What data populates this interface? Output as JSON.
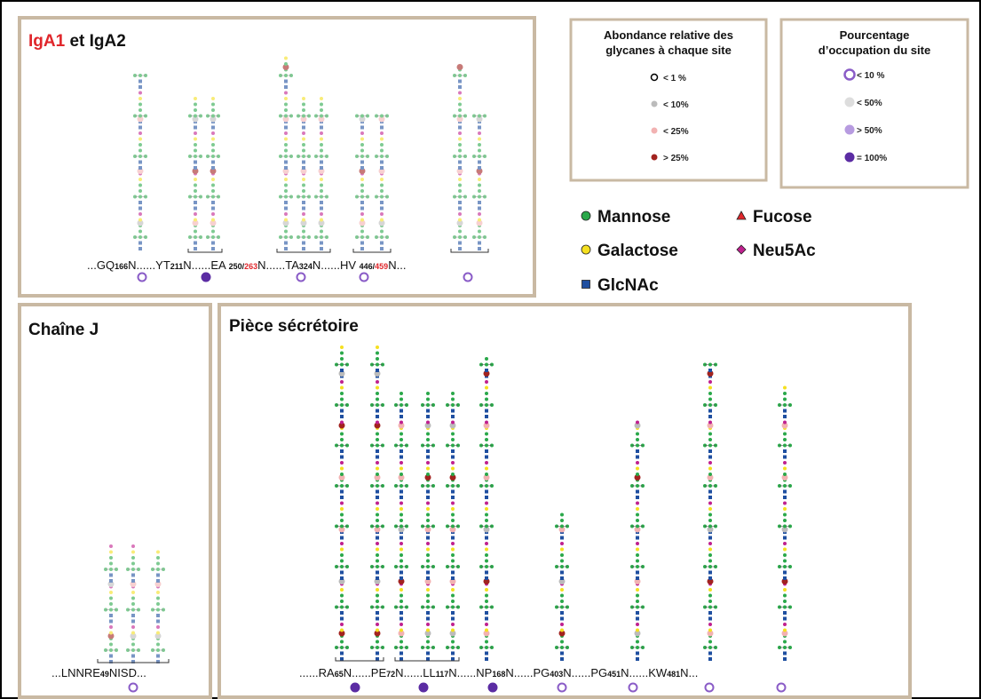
{
  "iga": {
    "title_red": "IgA1",
    "title": " et IgA2",
    "sites": [
      {
        "before": "...GQ",
        "pos": "166"
      },
      {
        "before": "N......YT",
        "pos": "211"
      },
      {
        "before": "N......EA ",
        "pos": "250/",
        "alt": "263"
      },
      {
        "before": "N......TA",
        "pos": "324"
      },
      {
        "before": "N......HV ",
        "pos": "446/",
        "alt": "459"
      }
    ],
    "end": "N..."
  },
  "abundance_legend": {
    "title": [
      "Abondance relative des",
      "glycanes à chaque site"
    ],
    "items": [
      "< 1 %",
      "< 10%",
      "< 25%",
      "> 25%"
    ]
  },
  "occupancy_legend": {
    "title": [
      "Pourcentage",
      "d’occupation du site"
    ],
    "items": [
      "< 10 %",
      "< 50%",
      "> 50%",
      "= 100%"
    ]
  },
  "monosaccharides": [
    "Mannose",
    "Fucose",
    "Galactose",
    "Neu5Ac",
    "GlcNAc"
  ],
  "j_chain": {
    "title": "Chaîne J",
    "sites": [
      {
        "before": "...LNNRE",
        "pos": "49"
      }
    ],
    "end": "NISD..."
  },
  "secretory": {
    "title": "Pièce sécrétoire",
    "sites": [
      {
        "before": "......RA",
        "pos": "65"
      },
      {
        "before": "N......PE",
        "pos": "72"
      },
      {
        "before": "N......LL",
        "pos": "117"
      },
      {
        "before": "N......NP",
        "pos": "168"
      },
      {
        "before": "N......PG",
        "pos": "403"
      },
      {
        "before": "N......PG",
        "pos": "451"
      },
      {
        "before": "N......KW",
        "pos": "481"
      }
    ],
    "end": "N..."
  }
}
